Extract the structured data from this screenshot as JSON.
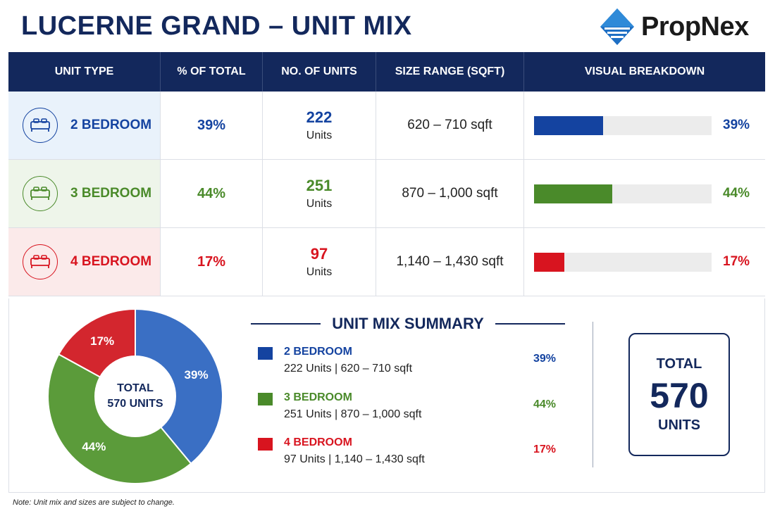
{
  "title": "LUCERNE GRAND – UNIT MIX",
  "brand": "PropNex",
  "colors": {
    "navy": "#13285c",
    "blue": "#1443a0",
    "green": "#4a8a2a",
    "red": "#d8141f",
    "blue_bg": "#e9f2fb",
    "green_bg": "#eef5ea",
    "red_bg": "#fbeaea",
    "pie_blue": "#3a6fc4",
    "pie_green": "#5b9b3a",
    "pie_red": "#d3262e"
  },
  "table": {
    "headers": [
      "UNIT TYPE",
      "% OF TOTAL",
      "NO. OF UNITS",
      "SIZE RANGE (SQFT)",
      "VISUAL BREAKDOWN"
    ],
    "rows": [
      {
        "type": "2 BEDROOM",
        "pct": "39%",
        "units": "222",
        "units_label": "Units",
        "size": "620 – 710 sqft",
        "icon": "bed-icon"
      },
      {
        "type": "3 BEDROOM",
        "pct": "44%",
        "units": "251",
        "units_label": "Units",
        "size": "870 – 1,000 sqft",
        "icon": "bed-icon"
      },
      {
        "type": "4 BEDROOM",
        "pct": "17%",
        "units": "97",
        "units_label": "Units",
        "size": "1,140 – 1,430 sqft",
        "icon": "bed-icon"
      }
    ]
  },
  "summary": {
    "title": "UNIT MIX SUMMARY",
    "items": [
      {
        "name": "2 BEDROOM",
        "detail": "222 Units  |  620 – 710 sqft",
        "pct": "39%"
      },
      {
        "name": "3 BEDROOM",
        "detail": "251 Units  |  870 – 1,000 sqft",
        "pct": "44%"
      },
      {
        "name": "4 BEDROOM",
        "detail": "97 Units  |  1,140 – 1,430 sqft",
        "pct": "17%"
      }
    ]
  },
  "total": {
    "label_top": "TOTAL",
    "value": "570",
    "label_bottom": "UNITS"
  },
  "donut_center": {
    "line1": "TOTAL",
    "line2": "570 UNITS"
  },
  "note": "Note: Unit mix and sizes are subject to change.",
  "chart_data": [
    {
      "type": "bar",
      "title": "",
      "categories": [
        "2 BEDROOM",
        "3 BEDROOM",
        "4 BEDROOM"
      ],
      "values": [
        39,
        44,
        17
      ],
      "ylim": [
        0,
        100
      ],
      "data_labels": [
        "39%",
        "44%",
        "17%"
      ]
    },
    {
      "type": "pie",
      "title": "",
      "categories": [
        "2 BEDROOM",
        "3 BEDROOM",
        "4 BEDROOM"
      ],
      "values": [
        39,
        44,
        17
      ],
      "data_labels": [
        "39%",
        "44%",
        "17%"
      ],
      "center_label": "TOTAL 570 UNITS"
    }
  ]
}
